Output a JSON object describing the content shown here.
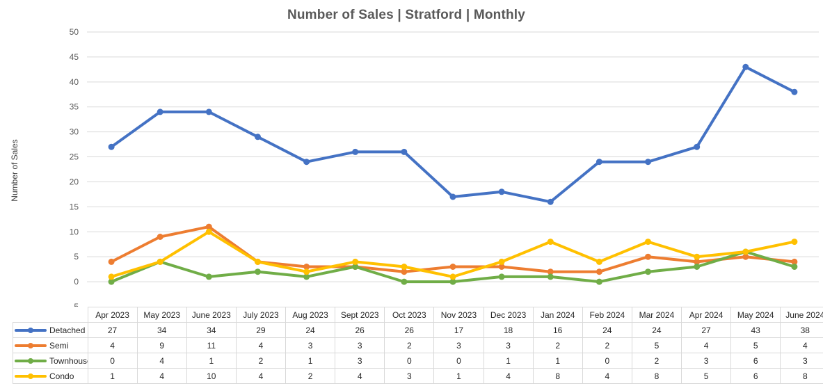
{
  "chart_data": {
    "type": "line",
    "title": "Number of Sales | Stratford | Monthly",
    "xlabel": "",
    "ylabel": "Number of Sales",
    "ylim": [
      -5,
      50
    ],
    "yticks": [
      "50",
      "45",
      "40",
      "35",
      "30",
      "25",
      "20",
      "15",
      "10",
      "5",
      "0",
      "-5"
    ],
    "grid": true,
    "legend": "data-table",
    "categories": [
      "Apr 2023",
      "May 2023",
      "June 2023",
      "July 2023",
      "Aug 2023",
      "Sept 2023",
      "Oct 2023",
      "Nov 2023",
      "Dec 2023",
      "Jan 2024",
      "Feb 2024",
      "Mar 2024",
      "Apr 2024",
      "May 2024",
      "June 2024"
    ],
    "series": [
      {
        "name": "Detached",
        "color": "#4472C4",
        "values": [
          27,
          34,
          34,
          29,
          24,
          26,
          26,
          17,
          18,
          16,
          24,
          24,
          27,
          43,
          38
        ]
      },
      {
        "name": "Semi",
        "color": "#ED7D31",
        "values": [
          4,
          9,
          11,
          4,
          3,
          3,
          2,
          3,
          3,
          2,
          2,
          5,
          4,
          5,
          4
        ]
      },
      {
        "name": "Townhouse",
        "color": "#70AD47",
        "values": [
          0,
          4,
          1,
          2,
          1,
          3,
          0,
          0,
          1,
          1,
          0,
          2,
          3,
          6,
          3
        ]
      },
      {
        "name": "Condo",
        "color": "#FFC000",
        "values": [
          1,
          4,
          10,
          4,
          2,
          4,
          3,
          1,
          4,
          8,
          4,
          8,
          5,
          6,
          8
        ]
      }
    ]
  }
}
